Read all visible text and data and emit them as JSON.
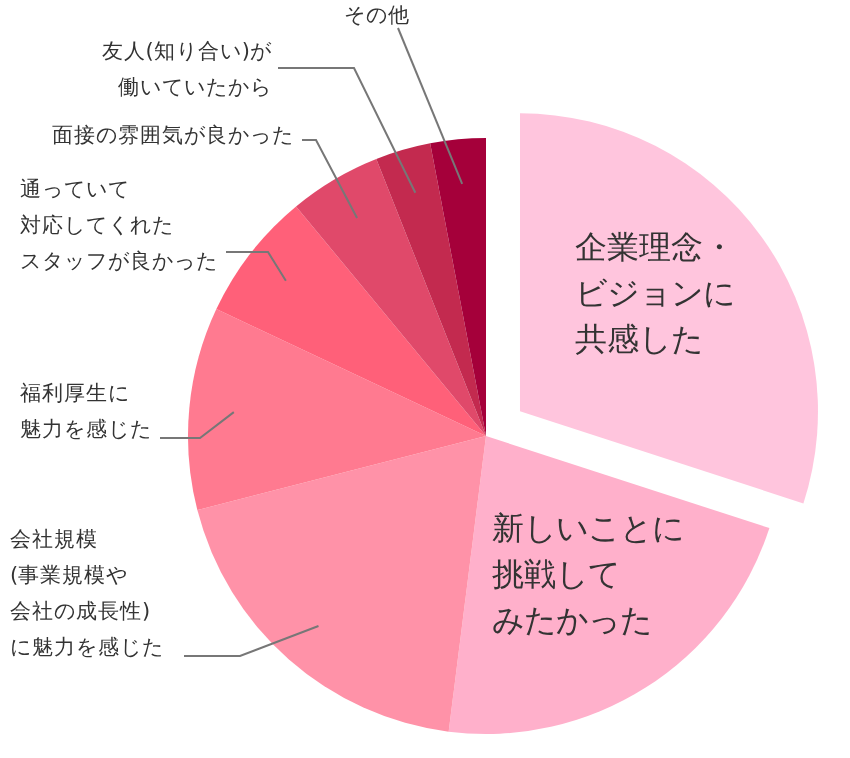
{
  "chart_data": {
    "type": "pie",
    "categories": [
      "企業理念・ビジョンに共感した",
      "新しいことに挑戦してみたかった",
      "会社規模(事業規模や会社の成長性)に魅力を感じた",
      "福利厚生に魅力を感じた",
      "通っていて対応してくれたスタッフが良かった",
      "面接の雰囲気が良かった",
      "友人(知り合い)が働いていたから",
      "その他"
    ],
    "values": [
      30,
      22,
      19,
      11,
      7,
      5,
      3,
      3
    ],
    "colors": [
      "#ffc5dd",
      "#ffb0cb",
      "#ff92a8",
      "#ff7a90",
      "#ff6079",
      "#e0496a",
      "#c32a4f",
      "#a5003a"
    ]
  }
}
